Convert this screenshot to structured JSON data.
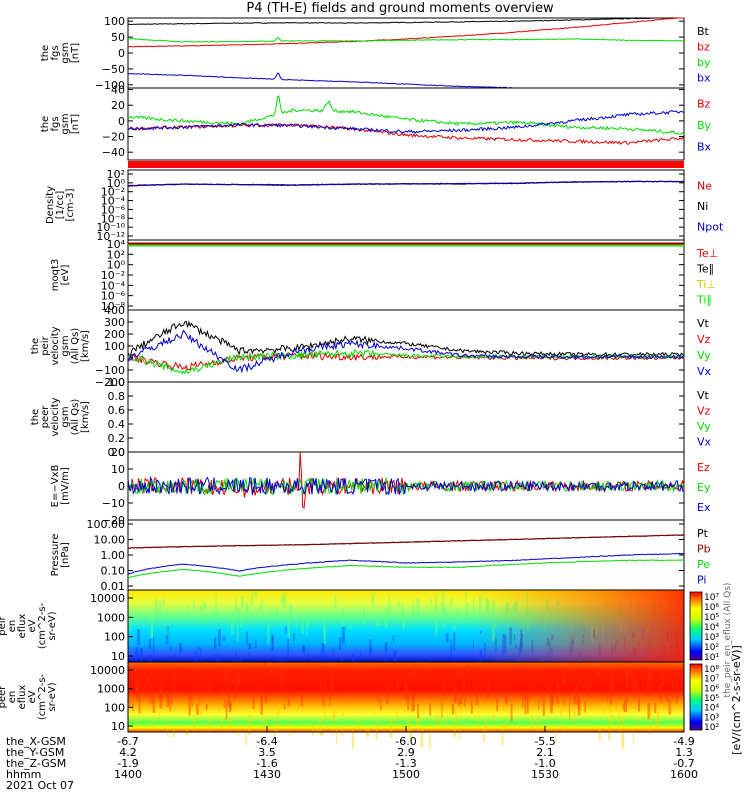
{
  "title": "P4 (TH-E) fields and ground moments overview",
  "colors": {
    "black": "#000000",
    "red": "#e00000",
    "green": "#00dd00",
    "blue": "#0000cc",
    "dark_red": "#8b0000",
    "yellow": "#cccc00"
  },
  "chart_data": [
    {
      "type": "line",
      "id": "fgs_btot",
      "ylabel": [
        "the",
        "fgs",
        "gsm",
        "[nT]"
      ],
      "ylim": [
        -110,
        110
      ],
      "ticks": [
        100,
        50,
        0,
        -50,
        -100
      ],
      "tick_labels": [
        "100",
        "50",
        "0",
        "−50",
        "−100"
      ],
      "series": [
        {
          "name": "Bt",
          "color": "#000000",
          "values": [
            90,
            92,
            94,
            95,
            94,
            96,
            98,
            100,
            104,
            108,
            112
          ]
        },
        {
          "name": "bz",
          "color": "#e00000",
          "values": [
            20,
            22,
            26,
            30,
            36,
            44,
            54,
            66,
            80,
            96,
            112
          ]
        },
        {
          "name": "by",
          "color": "#00dd00",
          "values": [
            45,
            35,
            36,
            38,
            38,
            40,
            42,
            42,
            44,
            40,
            38
          ]
        },
        {
          "name": "bx",
          "color": "#0000cc",
          "values": [
            -65,
            -70,
            -78,
            -85,
            -90,
            -98,
            -105,
            -110,
            -115,
            -118,
            -120
          ]
        }
      ]
    },
    {
      "type": "line",
      "id": "fgs_bvec",
      "ylabel": [
        "the",
        "fgs",
        "gsm",
        "[nT]"
      ],
      "ylim": [
        -50,
        42
      ],
      "ticks": [
        40,
        20,
        0,
        -20,
        -40
      ],
      "tick_labels": [
        "40",
        "20",
        "0",
        "−20",
        "−40"
      ],
      "series": [
        {
          "name": "Bz",
          "color": "#e00000",
          "values": [
            -10,
            -8,
            -6,
            -5,
            -10,
            -18,
            -22,
            -24,
            -26,
            -28,
            -22
          ]
        },
        {
          "name": "By",
          "color": "#00dd00",
          "values": [
            5,
            0,
            -4,
            14,
            12,
            2,
            -4,
            -2,
            -8,
            -10,
            -16
          ]
        },
        {
          "name": "Bx",
          "color": "#0000cc",
          "values": [
            -10,
            -8,
            -5,
            -6,
            -10,
            -14,
            -12,
            -8,
            0,
            8,
            12
          ]
        }
      ]
    },
    {
      "type": "line",
      "id": "density",
      "ylabel": [
        "Density",
        "[1/cc]",
        "[cm-3]"
      ],
      "scale": "log",
      "tick_labels": [
        "10²",
        "10⁰",
        "10⁻²",
        "10⁻⁴",
        "10⁻⁶",
        "10⁻⁸",
        "10⁻¹⁰",
        "10⁻¹²"
      ],
      "series": [
        {
          "name": "Ne",
          "color": "#e00000",
          "values": [
            0.2,
            0.5,
            0.4,
            0.3,
            0.5,
            0.6,
            0.6,
            0.8,
            1.5,
            2.0,
            2.0
          ]
        },
        {
          "name": "Ni",
          "color": "#000000",
          "values": [
            0.2,
            0.5,
            0.4,
            0.3,
            0.5,
            0.6,
            0.6,
            0.8,
            1.5,
            2.0,
            2.0
          ]
        },
        {
          "name": "Npot",
          "color": "#0000cc",
          "values": [
            0.25,
            0.5,
            0.45,
            0.35,
            0.5,
            0.6,
            0.7,
            0.9,
            1.6,
            2.0,
            2.0
          ]
        }
      ]
    },
    {
      "type": "line",
      "id": "temperature",
      "ylabel": [
        "moqt3",
        "[eV]"
      ],
      "scale": "log",
      "tick_labels": [
        "10⁴",
        "10²",
        "10⁰",
        "10⁻²",
        "10⁻⁴",
        "10⁻⁶",
        "10⁻⁸"
      ],
      "series": [
        {
          "name": "Te⊥",
          "color": "#e00000"
        },
        {
          "name": "Te∥",
          "color": "#000000"
        },
        {
          "name": "Ti⊥",
          "color": "#cccc00"
        },
        {
          "name": "Ti∥",
          "color": "#00dd00"
        }
      ]
    },
    {
      "type": "line",
      "id": "peir_velocity",
      "ylabel": [
        "the",
        "peir",
        "velocity",
        "gsm",
        "(All Qs)",
        "[km/s]"
      ],
      "ylim": [
        -200,
        400
      ],
      "ticks": [
        400,
        300,
        200,
        100,
        0,
        -100,
        -200
      ],
      "tick_labels": [
        "400",
        "300",
        "200",
        "100",
        "0",
        "−100",
        "−200"
      ],
      "series": [
        {
          "name": "Vt",
          "color": "#000000",
          "values": [
            40,
            300,
            60,
            80,
            160,
            120,
            60,
            40,
            30,
            30,
            30
          ]
        },
        {
          "name": "Vz",
          "color": "#e00000",
          "values": [
            10,
            -80,
            0,
            20,
            10,
            10,
            5,
            0,
            0,
            0,
            0
          ]
        },
        {
          "name": "Vy",
          "color": "#00dd00",
          "values": [
            20,
            -120,
            10,
            20,
            40,
            20,
            10,
            10,
            10,
            10,
            10
          ]
        },
        {
          "name": "Vx",
          "color": "#0000cc",
          "values": [
            0,
            200,
            -100,
            60,
            120,
            80,
            20,
            10,
            10,
            10,
            10
          ]
        }
      ]
    },
    {
      "type": "line",
      "id": "peer_velocity",
      "ylabel": [
        "the",
        "peer",
        "velocity",
        "gsm",
        "(All Qs)",
        "[km/s]"
      ],
      "ylim": [
        0,
        1.0
      ],
      "ticks": [
        1.0,
        0.8,
        0.6,
        0.4,
        0.2,
        0.0
      ],
      "tick_labels": [
        "1.0",
        "0.8",
        "0.6",
        "0.4",
        "0.2",
        "0.0"
      ],
      "series": [
        {
          "name": "Vt",
          "color": "#000000"
        },
        {
          "name": "Vz",
          "color": "#e00000"
        },
        {
          "name": "Vy",
          "color": "#00dd00"
        },
        {
          "name": "Vx",
          "color": "#0000cc"
        }
      ]
    },
    {
      "type": "line",
      "id": "efield",
      "ylabel": [
        "E=−VxB",
        "[mV/m]"
      ],
      "ylim": [
        -20,
        20
      ],
      "ticks": [
        20,
        10,
        0,
        -10,
        -20
      ],
      "tick_labels": [
        "20",
        "10",
        "0",
        "−10",
        "−20"
      ],
      "series": [
        {
          "name": "Ez",
          "color": "#e00000",
          "values": [
            0,
            0,
            -2,
            0,
            0,
            0,
            0,
            0,
            0,
            0,
            0
          ]
        },
        {
          "name": "Ey",
          "color": "#00dd00",
          "values": [
            0,
            0,
            0,
            0,
            0,
            0,
            0,
            0,
            0,
            0,
            0
          ]
        },
        {
          "name": "Ex",
          "color": "#0000cc",
          "values": [
            0,
            0,
            0,
            0,
            0,
            0,
            0,
            0,
            0,
            0,
            0
          ]
        }
      ]
    },
    {
      "type": "line",
      "id": "pressure",
      "ylabel": [
        "Pressure",
        "[nPa]"
      ],
      "scale": "log",
      "ylim": [
        0.01,
        100
      ],
      "tick_labels": [
        "100.00",
        "10.00",
        "1.00",
        "0.10",
        "0.01"
      ],
      "series": [
        {
          "name": "Pt",
          "color": "#000000",
          "values": [
            2.5,
            3.0,
            3.4,
            3.8,
            4.5,
            5.4,
            6.5,
            7.8,
            9.5,
            11.5,
            14
          ]
        },
        {
          "name": "Pb",
          "color": "#8b0000",
          "values": [
            2.5,
            3.0,
            3.4,
            3.8,
            4.5,
            5.4,
            6.5,
            7.8,
            9.5,
            11.5,
            14
          ]
        },
        {
          "name": "Pe",
          "color": "#00dd00",
          "values": [
            0.05,
            0.15,
            0.06,
            0.15,
            0.25,
            0.2,
            0.2,
            0.3,
            0.4,
            0.5,
            0.5
          ]
        },
        {
          "name": "Pi",
          "color": "#0000cc",
          "values": [
            0.08,
            0.3,
            0.12,
            0.3,
            0.5,
            0.35,
            0.4,
            0.5,
            0.7,
            1.0,
            1.2
          ]
        }
      ]
    },
    {
      "type": "heatmap",
      "id": "peir_eflux",
      "ylabel": [
        "the",
        "peir",
        "en",
        "eflux",
        "eV",
        "(cm^2-s-",
        "sr-eV)"
      ],
      "scale": "log",
      "tick_labels": [
        "10000",
        "1000",
        "100",
        "10"
      ]
    },
    {
      "type": "heatmap",
      "id": "peer_eflux",
      "ylabel": [
        "the",
        "peer",
        "en",
        "eflux",
        "eV",
        "(cm^2-s-",
        "sr-eV)"
      ],
      "scale": "log",
      "tick_labels": [
        "10000",
        "1000",
        "100",
        "10"
      ]
    }
  ],
  "colorbars": [
    {
      "tick_labels": [
        "10⁷",
        "10⁶",
        "10⁵",
        "10⁴",
        "10³",
        "10²",
        "10¹"
      ]
    },
    {
      "tick_labels": [
        "10⁸",
        "10⁷",
        "10⁶",
        "10⁵",
        "10⁴",
        "10³",
        "10²"
      ]
    }
  ],
  "colorbar_label": "[eV/(cm^2-s-sr-eV)]",
  "colorbar_label_overlay": "the_peir_en_eflux (All Qs)",
  "x_axis": {
    "row_labels": [
      "the_X-GSM",
      "the_Y-GSM",
      "the_Z-GSM",
      "hhmm",
      "2021 Oct 07"
    ],
    "columns": [
      {
        "values": [
          "-6.7",
          "4.2",
          "-1.9",
          "1400"
        ]
      },
      {
        "values": [
          "-6.4",
          "3.5",
          "-1.6",
          "1430"
        ]
      },
      {
        "values": [
          "-6.0",
          "2.9",
          "-1.3",
          "1500"
        ]
      },
      {
        "values": [
          "-5.5",
          "2.1",
          "-1.0",
          "1530"
        ]
      },
      {
        "values": [
          "-4.9",
          "1.3",
          "-0.7",
          "1600"
        ]
      }
    ]
  }
}
